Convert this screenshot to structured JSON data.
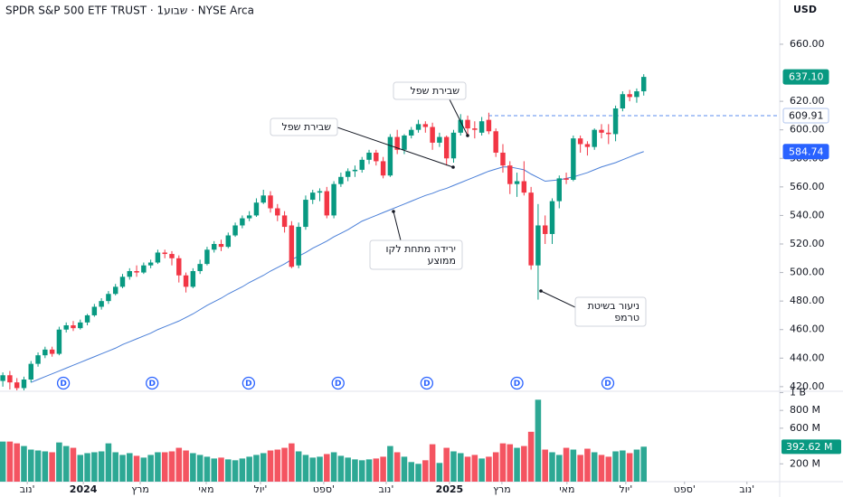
{
  "chart_data": {
    "type": "candlestick",
    "title": "SPDR S&P 500 ETF TRUST · 1שבוע · NYSE Arca",
    "currency": "USD",
    "up_color": "#089981",
    "down_color": "#f23645",
    "x": [
      0,
      1,
      2,
      3,
      4,
      5,
      6,
      7,
      8,
      9,
      10,
      11,
      12,
      13,
      14,
      15,
      16,
      17,
      18,
      19,
      20,
      21,
      22,
      23,
      24,
      25,
      26,
      27,
      28,
      29,
      30,
      31,
      32,
      33,
      34,
      35,
      36,
      37,
      38,
      39,
      40,
      41,
      42,
      43,
      44,
      45,
      46,
      47,
      48,
      49,
      50,
      51,
      52,
      53,
      54,
      55,
      56,
      57,
      58,
      59,
      60,
      61,
      62,
      63,
      64,
      65,
      66,
      67,
      68,
      69,
      70,
      71,
      72,
      73,
      74,
      75,
      76,
      77,
      78,
      79,
      80,
      81,
      82,
      83,
      84,
      85,
      86,
      87,
      88,
      89,
      90,
      91
    ],
    "xlim": [
      -0.4,
      110.3
    ],
    "xticks": [
      {
        "value": 3.47,
        "label": "נוב'"
      },
      {
        "value": 11.43,
        "label": "2024"
      },
      {
        "value": 19.51,
        "label": "מרץ"
      },
      {
        "value": 28.88,
        "label": "מאי"
      },
      {
        "value": 36.59,
        "label": "יול'"
      },
      {
        "value": 45.57,
        "label": "ספט'"
      },
      {
        "value": 54.43,
        "label": "נוב'"
      },
      {
        "value": 63.41,
        "label": "2025"
      },
      {
        "value": 70.86,
        "label": "מרץ"
      },
      {
        "value": 80.1,
        "label": "מאי"
      },
      {
        "value": 88.45,
        "label": "יול'"
      },
      {
        "value": 96.79,
        "label": "ספט'"
      },
      {
        "value": 105.65,
        "label": "נוב'"
      }
    ],
    "open": [
      424,
      428,
      423,
      419,
      425,
      436,
      442,
      446,
      443,
      460,
      463,
      461,
      465,
      470,
      476,
      480,
      485,
      490,
      497,
      501,
      500,
      505,
      507,
      514,
      513,
      510,
      498,
      490,
      501,
      506,
      516,
      520,
      518,
      526,
      533,
      538,
      540,
      549,
      554,
      545,
      540,
      533,
      505,
      532,
      551,
      556,
      557,
      540,
      562,
      567,
      571,
      572,
      579,
      584,
      578,
      568,
      595,
      586,
      596,
      600,
      604,
      602,
      591,
      595,
      580,
      598,
      607,
      601,
      598,
      607,
      599,
      584,
      575,
      562,
      564,
      556,
      505,
      533,
      527,
      550,
      566,
      565,
      594,
      590,
      588,
      600,
      598,
      597,
      615,
      625,
      623,
      627
    ],
    "high": [
      430,
      431,
      426,
      427,
      438,
      444,
      448,
      448,
      462,
      465,
      466,
      467,
      471,
      478,
      482,
      487,
      492,
      499,
      503,
      505,
      507,
      509,
      516,
      516,
      515,
      512,
      500,
      503,
      509,
      518,
      522,
      523,
      528,
      535,
      540,
      543,
      552,
      558,
      557,
      548,
      543,
      536,
      535,
      554,
      558,
      559,
      560,
      564,
      570,
      573,
      575,
      581,
      586,
      586,
      581,
      597,
      600,
      597,
      602,
      607,
      606,
      605,
      598,
      596,
      600,
      611,
      610,
      606,
      609,
      612,
      601,
      590,
      578,
      570,
      578,
      560,
      548,
      540,
      552,
      568,
      570,
      596,
      596,
      592,
      601,
      604,
      604,
      617,
      627,
      628,
      629,
      639
    ],
    "low": [
      420,
      418,
      415,
      416,
      423,
      434,
      440,
      441,
      442,
      458,
      459,
      460,
      463,
      469,
      474,
      478,
      484,
      489,
      495,
      497,
      499,
      503,
      506,
      510,
      505,
      493,
      486,
      489,
      499,
      505,
      514,
      515,
      517,
      525,
      531,
      536,
      539,
      548,
      542,
      536,
      528,
      503,
      503,
      530,
      548,
      550,
      538,
      538,
      560,
      564,
      567,
      570,
      576,
      575,
      566,
      567,
      583,
      583,
      594,
      598,
      598,
      586,
      588,
      575,
      577,
      596,
      595,
      594,
      596,
      597,
      581,
      570,
      555,
      553,
      554,
      502,
      481,
      520,
      520,
      545,
      562,
      564,
      584,
      582,
      586,
      594,
      590,
      592,
      613,
      620,
      619,
      624
    ],
    "close": [
      428,
      423,
      419,
      425,
      436,
      442,
      446,
      443,
      460,
      463,
      461,
      465,
      470,
      476,
      480,
      485,
      490,
      497,
      501,
      500,
      505,
      507,
      514,
      513,
      510,
      498,
      490,
      501,
      506,
      516,
      520,
      518,
      526,
      533,
      538,
      540,
      549,
      554,
      545,
      540,
      532,
      504,
      532,
      551,
      556,
      557,
      540,
      562,
      567,
      571,
      572,
      579,
      584,
      578,
      568,
      595,
      586,
      596,
      600,
      604,
      602,
      591,
      595,
      580,
      598,
      607,
      601,
      600,
      606,
      599,
      584,
      575,
      562,
      564,
      556,
      505,
      533,
      527,
      550,
      566,
      565,
      594,
      590,
      588,
      600,
      598,
      597,
      615,
      625,
      623,
      627,
      637.1
    ],
    "ylim": [
      417.4,
      691.0
    ],
    "yticks": [
      {
        "value": 420,
        "label": "420.00"
      },
      {
        "value": 440,
        "label": "440.00"
      },
      {
        "value": 460,
        "label": "460.00"
      },
      {
        "value": 480,
        "label": "480.00"
      },
      {
        "value": 500,
        "label": "500.00"
      },
      {
        "value": 520,
        "label": "520.00"
      },
      {
        "value": 540,
        "label": "540.00"
      },
      {
        "value": 560,
        "label": "560.00"
      },
      {
        "value": 580,
        "label": "580.00"
      },
      {
        "value": 600,
        "label": "600.00"
      },
      {
        "value": 620,
        "label": "620.00"
      },
      {
        "value": 660,
        "label": "660.00"
      }
    ],
    "last_price": {
      "value": 637.1,
      "label": "637.10"
    },
    "level": {
      "value": 609.91,
      "label": "609.91",
      "color": "#5b8def"
    },
    "moving_average": {
      "color": "#4a7fd8",
      "values": [
        null,
        null,
        null,
        null,
        423,
        425,
        427,
        429,
        431,
        433,
        435,
        437,
        439,
        441,
        443,
        445,
        447,
        449.5,
        451.5,
        453.5,
        455.5,
        457.5,
        460,
        462,
        464,
        466,
        468.5,
        471,
        474,
        477,
        479.5,
        482,
        485,
        487.5,
        490,
        493,
        495.5,
        498,
        501,
        503.5,
        506,
        509,
        511.5,
        514,
        517,
        519.5,
        522,
        525,
        527.5,
        530,
        533,
        536,
        538,
        540,
        542,
        544,
        546,
        548,
        550,
        552,
        554,
        555.5,
        557.5,
        559,
        561,
        563,
        565,
        567,
        569,
        571,
        572.5,
        574,
        574,
        573,
        572,
        569,
        566.5,
        564,
        564.5,
        565,
        566,
        567,
        568.5,
        570,
        572,
        574,
        575.5,
        577,
        579,
        581,
        583,
        584.74
      ],
      "last": {
        "value": 584.74,
        "label": "584.74"
      }
    },
    "dividends": {
      "label": "D",
      "x": [
        8.6,
        21.2,
        34.9,
        47.6,
        60.2,
        73.0,
        85.9
      ]
    },
    "annotations": [
      {
        "lines": [
          "שבירת שפל"
        ]
      },
      {
        "lines": [
          "שבירת שפל"
        ]
      },
      {
        "lines": [
          "ירידה מתחת לקו",
          "ממוצע"
        ]
      },
      {
        "lines": [
          "ניעור בשיטת",
          "טרמפ"
        ]
      }
    ],
    "volume": {
      "values": [
        450,
        450,
        430,
        400,
        360,
        350,
        340,
        330,
        440,
        400,
        380,
        300,
        320,
        330,
        340,
        430,
        330,
        300,
        320,
        290,
        270,
        300,
        330,
        330,
        340,
        380,
        350,
        320,
        300,
        280,
        260,
        270,
        250,
        240,
        260,
        280,
        300,
        320,
        350,
        360,
        380,
        430,
        340,
        300,
        270,
        280,
        310,
        330,
        290,
        270,
        250,
        240,
        250,
        260,
        280,
        400,
        330,
        280,
        220,
        200,
        240,
        420,
        210,
        380,
        340,
        320,
        280,
        300,
        260,
        280,
        330,
        430,
        420,
        380,
        400,
        560,
        920,
        360,
        330,
        300,
        380,
        360,
        300,
        370,
        330,
        300,
        280,
        340,
        350,
        320,
        360,
        392.62
      ],
      "ylim": [
        0,
        1025
      ],
      "yticks": [
        {
          "value": 1000,
          "label": "1 B"
        },
        {
          "value": 800,
          "label": "800 M"
        },
        {
          "value": 600,
          "label": "600 M"
        },
        {
          "value": 200,
          "label": "200 M"
        }
      ],
      "last": {
        "value": 392.62,
        "label": "392.62 M"
      }
    }
  }
}
